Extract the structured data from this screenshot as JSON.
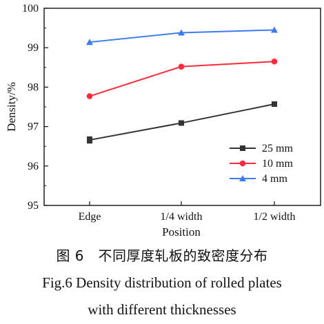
{
  "chart_data": {
    "type": "line",
    "categories": [
      "Edge",
      "1/4 width",
      "1/2 width"
    ],
    "xlabel": "Position",
    "ylabel": "Density/%",
    "ylim": [
      95,
      100
    ],
    "yticks": [
      95,
      96,
      97,
      98,
      99,
      100
    ],
    "grid": false,
    "legend_position": "lower-right",
    "series": [
      {
        "name": "25 mm",
        "values": [
          96.66,
          97.09,
          97.57
        ],
        "error": [
          0.08,
          0.02,
          0.01
        ],
        "color": "#333333",
        "marker": "square"
      },
      {
        "name": "10 mm",
        "values": [
          97.77,
          98.52,
          98.65
        ],
        "color": "#ff2a3b",
        "marker": "circle"
      },
      {
        "name": "4 mm",
        "values": [
          99.14,
          99.38,
          99.45
        ],
        "color": "#3d7bf0",
        "marker": "triangle"
      }
    ]
  },
  "caption": {
    "cn": "图 6　不同厚度轧板的致密度分布",
    "en_line1": "Fig.6    Density distribution of rolled plates",
    "en_line2": "with different thicknesses"
  }
}
